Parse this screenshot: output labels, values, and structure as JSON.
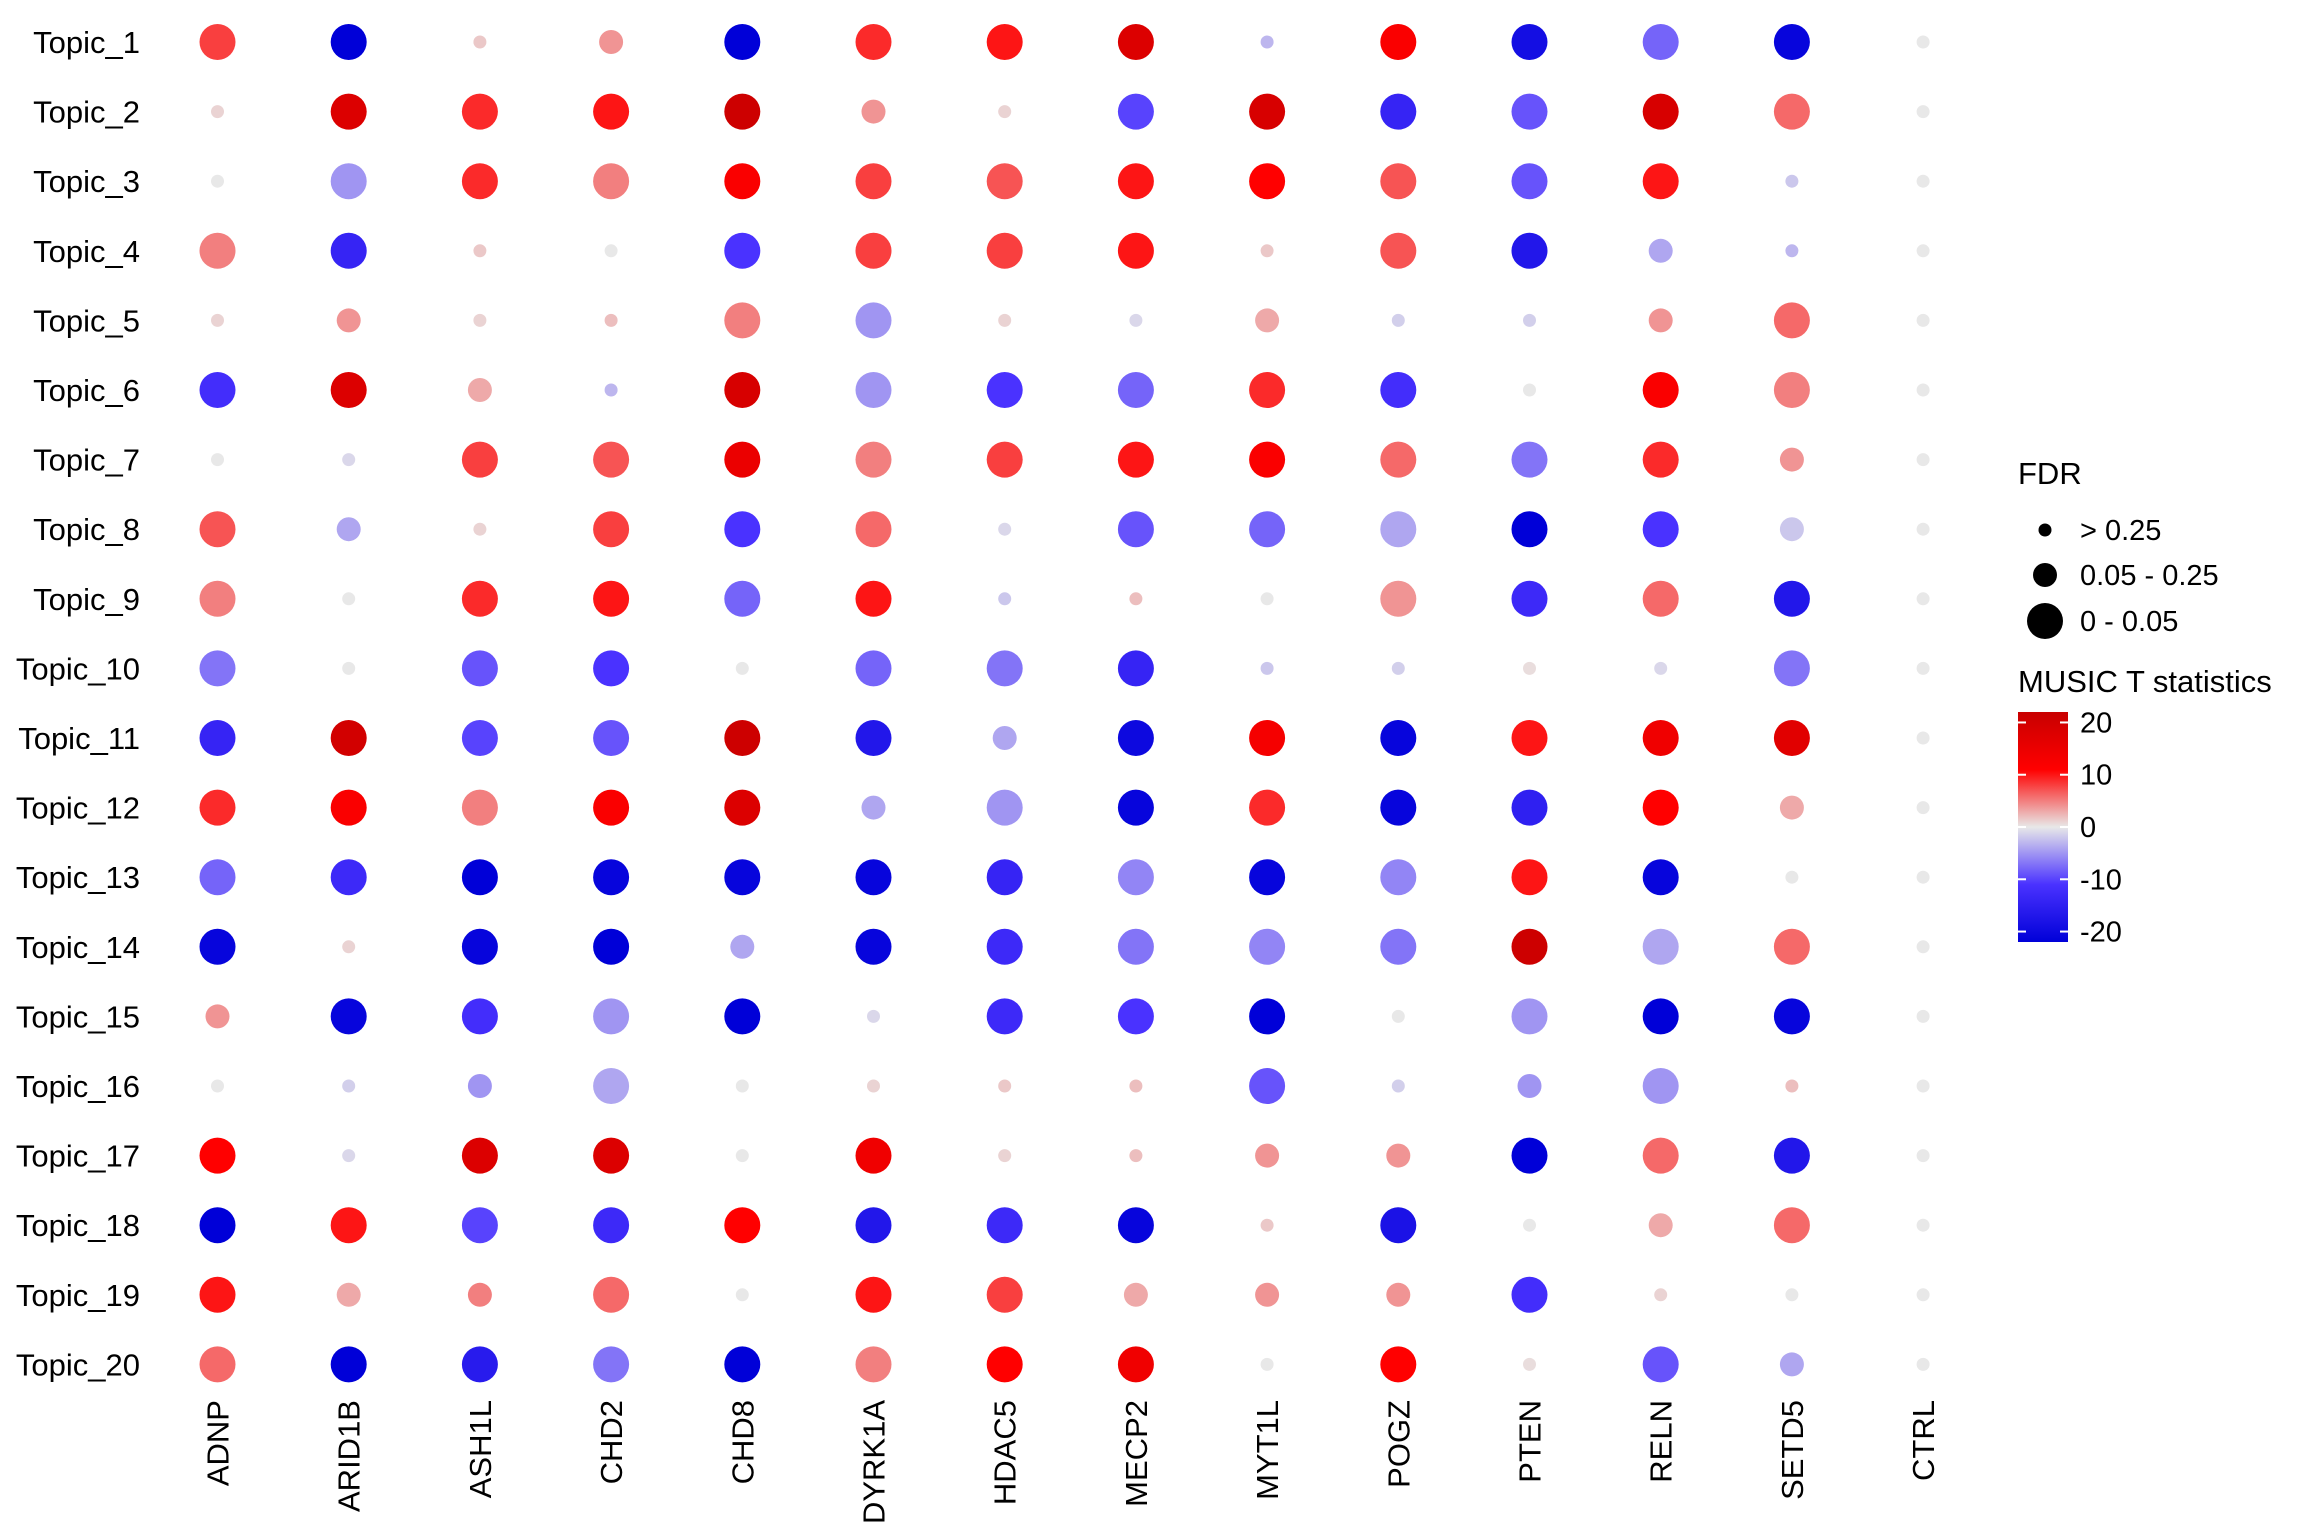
{
  "chart_data": {
    "type": "dotplot",
    "title": "",
    "xlabel": "",
    "ylabel": "",
    "genes": [
      "ADNP",
      "ARID1B",
      "ASH1L",
      "CHD2",
      "CHD8",
      "DYRK1A",
      "HDAC5",
      "MECP2",
      "MYT1L",
      "POGZ",
      "PTEN",
      "RELN",
      "SETD5",
      "CTRL"
    ],
    "topics": [
      "Topic_1",
      "Topic_2",
      "Topic_3",
      "Topic_4",
      "Topic_5",
      "Topic_6",
      "Topic_7",
      "Topic_8",
      "Topic_9",
      "Topic_10",
      "Topic_11",
      "Topic_12",
      "Topic_13",
      "Topic_14",
      "Topic_15",
      "Topic_16",
      "Topic_17",
      "Topic_18",
      "Topic_19",
      "Topic_20"
    ],
    "color_legend": {
      "title": "MUSIC T statistics",
      "ticks": [
        20,
        10,
        0,
        -10,
        -20
      ],
      "tick_labels": [
        "20",
        "10",
        "0",
        "-10",
        "-20"
      ],
      "range": [
        -22,
        22
      ],
      "colors": {
        "high": "#c80000",
        "mid_high": "#ff0000",
        "mid": "#e8e8e8",
        "mid_low": "#4a32ff",
        "low": "#0000d8"
      }
    },
    "size_legend": {
      "title": "FDR",
      "categories": [
        "> 0.25",
        "0.05 - 0.25",
        "0 - 0.05"
      ]
    },
    "fdr_codes": "0 => > 0.25 (small dot), 1 => 0.05 - 0.25 (medium dot), 2 => 0 - 0.05 (large dot)",
    "t_values": [
      [
        8,
        -22,
        1.5,
        4,
        -22,
        9,
        10,
        18,
        -3,
        12,
        -19,
        -8,
        -21,
        0
      ],
      [
        1,
        18,
        9,
        10,
        21,
        4,
        1,
        -10,
        19,
        -14,
        -9,
        19,
        6,
        0
      ],
      [
        0,
        -5,
        9,
        5,
        12,
        8,
        7,
        10,
        11,
        7,
        -9,
        10,
        -2,
        0
      ],
      [
        5,
        -14,
        1.5,
        0,
        -11,
        8,
        8,
        10,
        1.5,
        7,
        -17,
        -4,
        -3,
        0
      ],
      [
        1,
        4,
        1,
        2,
        5,
        -5,
        1,
        -1,
        3,
        -1.5,
        -1.5,
        4,
        6,
        0
      ],
      [
        -12,
        18,
        3,
        -3,
        19,
        -5,
        -11,
        -8,
        9,
        -12,
        0,
        12,
        5,
        0
      ],
      [
        0,
        -1,
        8,
        7,
        15,
        5,
        8,
        10,
        12,
        6,
        -7,
        9,
        4,
        0
      ],
      [
        7,
        -4,
        1,
        8,
        -11,
        6,
        -1,
        -9,
        -8,
        -4,
        -22,
        -11,
        -2,
        0
      ],
      [
        5,
        0,
        9,
        10,
        -8,
        10,
        -2,
        2,
        0,
        4,
        -13,
        6,
        -17,
        0
      ],
      [
        -7,
        0,
        -9,
        -11,
        0,
        -8,
        -7,
        -14,
        -2,
        -1.5,
        0.5,
        -1,
        -7,
        0
      ],
      [
        -14,
        20,
        -10,
        -9,
        21,
        -17,
        -4,
        -20,
        13,
        -21,
        10,
        14,
        17,
        0
      ],
      [
        9,
        12,
        5,
        12,
        18,
        -4,
        -5,
        -21,
        9,
        -21,
        -15,
        11,
        3,
        0
      ],
      [
        -8,
        -13,
        -22,
        -21,
        -21,
        -21,
        -14,
        -6,
        -21,
        -6,
        10,
        -21,
        0,
        0
      ],
      [
        -21,
        1,
        -21,
        -22,
        -4,
        -21,
        -13,
        -7,
        -6,
        -7,
        21,
        -4,
        6,
        0
      ],
      [
        4,
        -21,
        -12,
        -5,
        -22,
        -1,
        -13,
        -11,
        -22,
        0,
        -5,
        -22,
        -21,
        0
      ],
      [
        0,
        -1.5,
        -5,
        -4,
        0,
        1,
        1.5,
        2,
        -9,
        -1.5,
        -5,
        -5,
        2,
        0
      ],
      [
        11,
        -1,
        18,
        18,
        0,
        14,
        1,
        2,
        4,
        4,
        -22,
        6,
        -17,
        0
      ],
      [
        -22,
        10,
        -10,
        -13,
        11,
        -17,
        -13,
        -21,
        1.5,
        -18,
        0,
        3,
        6,
        0
      ],
      [
        10,
        3,
        5,
        6,
        0,
        10,
        8,
        3,
        4,
        4,
        -12,
        1,
        0,
        0
      ],
      [
        6,
        -22,
        -16,
        -7,
        -22,
        5,
        11,
        14,
        0,
        11,
        0.5,
        -9,
        -4,
        0
      ]
    ],
    "fdr_class": [
      [
        2,
        2,
        0,
        1,
        2,
        2,
        2,
        2,
        0,
        2,
        2,
        2,
        2,
        0
      ],
      [
        0,
        2,
        2,
        2,
        2,
        1,
        0,
        2,
        2,
        2,
        2,
        2,
        2,
        0
      ],
      [
        0,
        2,
        2,
        2,
        2,
        2,
        2,
        2,
        2,
        2,
        2,
        2,
        0,
        0
      ],
      [
        2,
        2,
        0,
        0,
        2,
        2,
        2,
        2,
        0,
        2,
        2,
        1,
        0,
        0
      ],
      [
        0,
        1,
        0,
        0,
        2,
        2,
        0,
        0,
        1,
        0,
        0,
        1,
        2,
        0
      ],
      [
        2,
        2,
        1,
        0,
        2,
        2,
        2,
        2,
        2,
        2,
        0,
        2,
        2,
        0
      ],
      [
        0,
        0,
        2,
        2,
        2,
        2,
        2,
        2,
        2,
        2,
        2,
        2,
        1,
        0
      ],
      [
        2,
        1,
        0,
        2,
        2,
        2,
        0,
        2,
        2,
        2,
        2,
        2,
        1,
        0
      ],
      [
        2,
        0,
        2,
        2,
        2,
        2,
        0,
        0,
        0,
        2,
        2,
        2,
        2,
        0
      ],
      [
        2,
        0,
        2,
        2,
        0,
        2,
        2,
        2,
        0,
        0,
        0,
        0,
        2,
        0
      ],
      [
        2,
        2,
        2,
        2,
        2,
        2,
        1,
        2,
        2,
        2,
        2,
        2,
        2,
        0
      ],
      [
        2,
        2,
        2,
        2,
        2,
        1,
        2,
        2,
        2,
        2,
        2,
        2,
        1,
        0
      ],
      [
        2,
        2,
        2,
        2,
        2,
        2,
        2,
        2,
        2,
        2,
        2,
        2,
        0,
        0
      ],
      [
        2,
        0,
        2,
        2,
        1,
        2,
        2,
        2,
        2,
        2,
        2,
        2,
        2,
        0
      ],
      [
        1,
        2,
        2,
        2,
        2,
        0,
        2,
        2,
        2,
        0,
        2,
        2,
        2,
        0
      ],
      [
        0,
        0,
        1,
        2,
        0,
        0,
        0,
        0,
        2,
        0,
        1,
        2,
        0,
        0
      ],
      [
        2,
        0,
        2,
        2,
        0,
        2,
        0,
        0,
        1,
        1,
        2,
        2,
        2,
        0
      ],
      [
        2,
        2,
        2,
        2,
        2,
        2,
        2,
        2,
        0,
        2,
        0,
        1,
        2,
        0
      ],
      [
        2,
        1,
        1,
        2,
        0,
        2,
        2,
        1,
        1,
        1,
        2,
        0,
        0,
        0
      ],
      [
        2,
        2,
        2,
        2,
        2,
        2,
        2,
        2,
        0,
        2,
        0,
        2,
        1,
        0
      ]
    ]
  }
}
